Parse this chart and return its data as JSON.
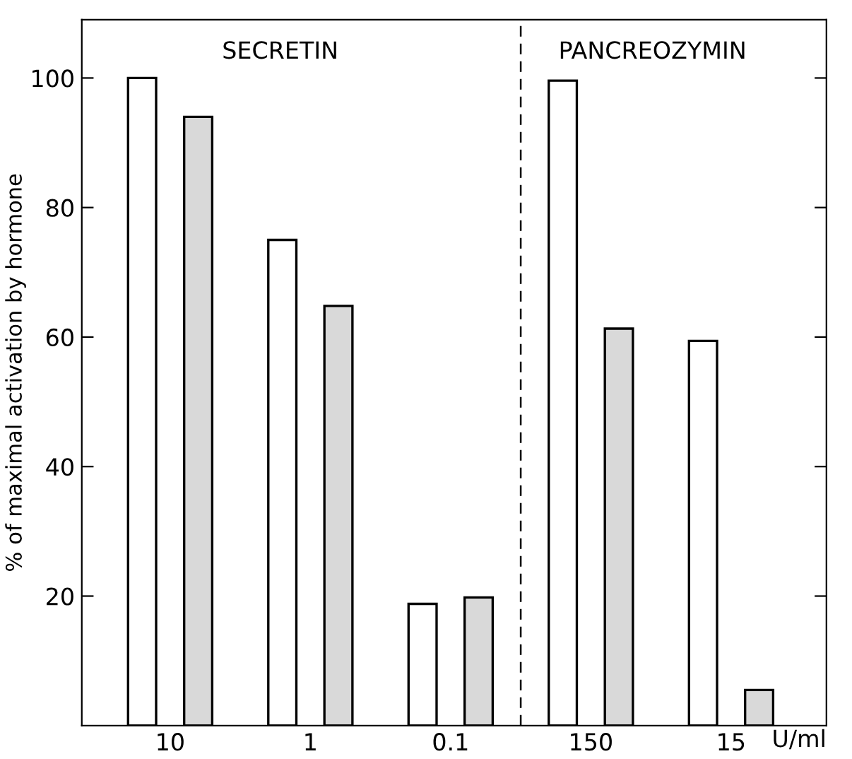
{
  "chart_data": {
    "type": "bar",
    "ylabel": "% of maximal activation by hormone",
    "xlabel": "U/ml",
    "categories": [
      "10",
      "1",
      "0.1",
      "150",
      "15"
    ],
    "series": [
      {
        "color": "#ffffff",
        "values": [
          100,
          75,
          18.8,
          99.6,
          59.4
        ]
      },
      {
        "color": "#d9d9d9",
        "values": [
          94,
          64.8,
          19.8,
          61.3,
          5.5
        ]
      }
    ],
    "ylim": [
      0,
      109
    ],
    "yticks": [
      20,
      40,
      60,
      80,
      100
    ],
    "annotations": [
      "SECRETIN",
      "PANCREOZYMIN"
    ],
    "grid": false,
    "legend": false
  }
}
